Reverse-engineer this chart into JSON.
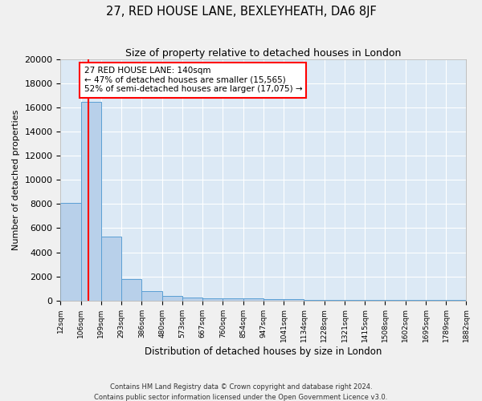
{
  "title": "27, RED HOUSE LANE, BEXLEYHEATH, DA6 8JF",
  "subtitle": "Size of property relative to detached houses in London",
  "xlabel": "Distribution of detached houses by size in London",
  "ylabel": "Number of detached properties",
  "bar_color": "#b8d0ea",
  "bar_edge_color": "#5a9fd4",
  "background_color": "#dce9f5",
  "fig_background_color": "#f0f0f0",
  "grid_color": "#ffffff",
  "bin_edges": [
    12,
    106,
    199,
    293,
    386,
    480,
    573,
    667,
    760,
    854,
    947,
    1041,
    1134,
    1228,
    1321,
    1415,
    1508,
    1602,
    1695,
    1789,
    1882
  ],
  "bar_heights": [
    8100,
    16500,
    5300,
    1750,
    750,
    350,
    250,
    200,
    200,
    150,
    100,
    80,
    60,
    50,
    40,
    30,
    25,
    20,
    15,
    15
  ],
  "red_line_x": 140,
  "ylim": [
    0,
    20000
  ],
  "yticks": [
    0,
    2000,
    4000,
    6000,
    8000,
    10000,
    12000,
    14000,
    16000,
    18000,
    20000
  ],
  "annotation_title": "27 RED HOUSE LANE: 140sqm",
  "annotation_line1": "← 47% of detached houses are smaller (15,565)",
  "annotation_line2": "52% of semi-detached houses are larger (17,075) →",
  "footnote1": "Contains HM Land Registry data © Crown copyright and database right 2024.",
  "footnote2": "Contains public sector information licensed under the Open Government Licence v3.0."
}
